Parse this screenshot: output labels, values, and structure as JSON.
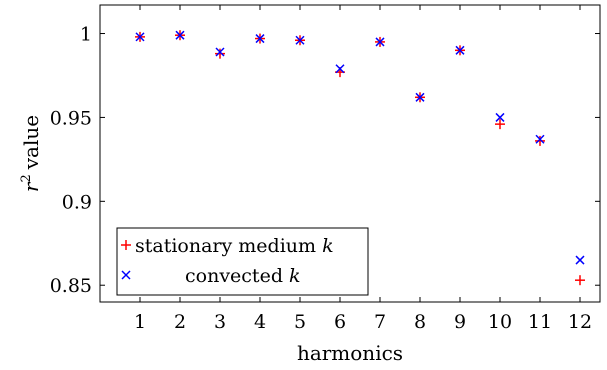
{
  "chart_data": {
    "type": "scatter",
    "xlabel": "harmonics",
    "ylabel": "value",
    "ylabel_var": "r",
    "ylabel_sup": "2",
    "x_ticks": [
      1,
      2,
      3,
      4,
      5,
      6,
      7,
      8,
      9,
      10,
      11,
      12
    ],
    "y_ticks": [
      0.85,
      0.9,
      0.95,
      1
    ],
    "y_tick_labels": [
      "0.85",
      "0.9",
      "0.95",
      "1"
    ],
    "xlim": [
      0,
      12.5
    ],
    "ylim": [
      0.84,
      1.017
    ],
    "grid": false,
    "legend_position": "bottom-left",
    "series": [
      {
        "name": "stationary medium",
        "name_var": "k",
        "marker": "plus",
        "color": "#ff0000",
        "x": [
          1,
          2,
          3,
          4,
          5,
          6,
          7,
          8,
          9,
          10,
          11,
          12
        ],
        "y": [
          0.998,
          0.999,
          0.988,
          0.997,
          0.996,
          0.977,
          0.995,
          0.962,
          0.99,
          0.946,
          0.936,
          0.853
        ]
      },
      {
        "name": "convected",
        "name_var": "k",
        "marker": "cross",
        "color": "#0000ff",
        "x": [
          1,
          2,
          3,
          4,
          5,
          6,
          7,
          8,
          9,
          10,
          11,
          12
        ],
        "y": [
          0.998,
          0.999,
          0.989,
          0.997,
          0.996,
          0.979,
          0.995,
          0.962,
          0.99,
          0.95,
          0.937,
          0.865
        ]
      }
    ]
  }
}
